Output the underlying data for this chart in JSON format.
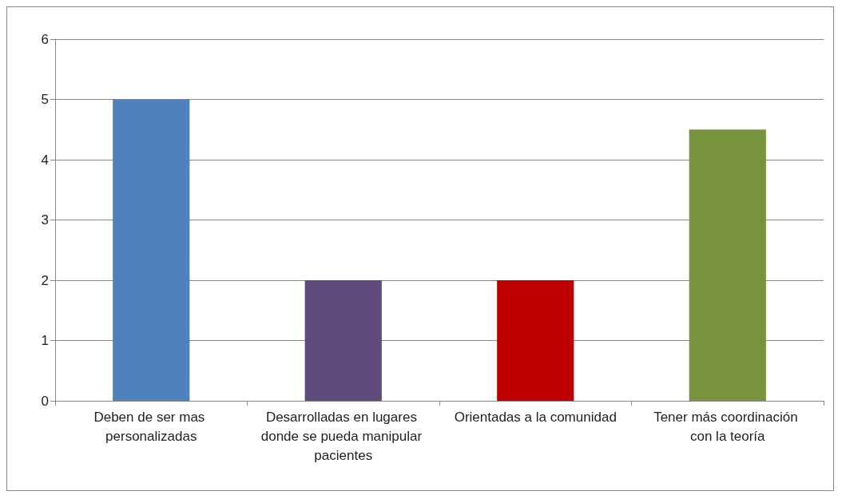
{
  "chart_data": {
    "type": "bar",
    "categories": [
      "Deben de ser mas personalizadas",
      "Desarrolladas en lugares donde se pueda manipular pacientes",
      "Orientadas a la comunidad",
      "Tener más coordinación con la teoría"
    ],
    "values": [
      5,
      2,
      2,
      4.5
    ],
    "colors": [
      "#4f81bd",
      "#604a7b",
      "#c00000",
      "#77933c"
    ],
    "ylim": [
      0,
      6
    ],
    "yticks": [
      0,
      1,
      2,
      3,
      4,
      5,
      6
    ],
    "grid": "y"
  }
}
